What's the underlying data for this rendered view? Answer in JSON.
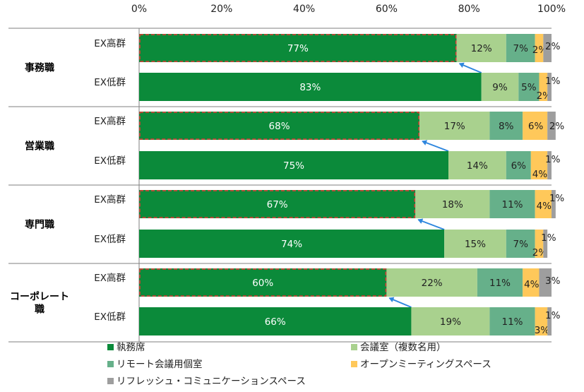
{
  "chart_data": {
    "type": "bar",
    "orientation": "horizontal",
    "stacked": true,
    "percent": true,
    "xlim": [
      0,
      100
    ],
    "xticks": [
      "0%",
      "20%",
      "40%",
      "60%",
      "80%",
      "100%"
    ],
    "series": [
      {
        "name": "執務席",
        "color": "#0b8a3a"
      },
      {
        "name": "会議室（複数名用）",
        "color": "#a9d18e"
      },
      {
        "name": "リモート会議用個室",
        "color": "#66b08a"
      },
      {
        "name": "オープンミーティングスペース",
        "color": "#ffc85a"
      },
      {
        "name": "リフレッシュ・コミュニケーションスペース",
        "color": "#9e9e9e"
      }
    ],
    "groups": [
      {
        "label": [
          "事務職"
        ],
        "rows": [
          {
            "label": "EX高群",
            "values": [
              77,
              12,
              7,
              2,
              2
            ],
            "labels": [
              "77%",
              "12%",
              "7%",
              "2%",
              "2%"
            ],
            "highlight": true
          },
          {
            "label": "EX低群",
            "values": [
              83,
              9,
              5,
              2,
              1
            ],
            "labels": [
              "83%",
              "9%",
              "5%",
              "2%",
              "1%"
            ]
          }
        ]
      },
      {
        "label": [
          "営業職"
        ],
        "rows": [
          {
            "label": "EX高群",
            "values": [
              68,
              17,
              8,
              6,
              2
            ],
            "labels": [
              "68%",
              "17%",
              "8%",
              "6%",
              "2%"
            ],
            "highlight": true
          },
          {
            "label": "EX低群",
            "values": [
              75,
              14,
              6,
              4,
              1
            ],
            "labels": [
              "75%",
              "14%",
              "6%",
              "4%",
              "1%"
            ]
          }
        ]
      },
      {
        "label": [
          "専門職"
        ],
        "rows": [
          {
            "label": "EX高群",
            "values": [
              67,
              18,
              11,
              4,
              1
            ],
            "labels": [
              "67%",
              "18%",
              "11%",
              "4%",
              "1%"
            ],
            "highlight": true
          },
          {
            "label": "EX低群",
            "values": [
              74,
              15,
              7,
              2,
              1
            ],
            "labels": [
              "74%",
              "15%",
              "7%",
              "2%",
              "1%"
            ]
          }
        ]
      },
      {
        "label": [
          "コーポレート",
          "職"
        ],
        "rows": [
          {
            "label": "EX高群",
            "values": [
              60,
              22,
              11,
              4,
              3
            ],
            "labels": [
              "60%",
              "22%",
              "11%",
              "4%",
              "3%"
            ],
            "highlight": true
          },
          {
            "label": "EX低群",
            "values": [
              66,
              19,
              11,
              3,
              1
            ],
            "labels": [
              "66%",
              "19%",
              "11%",
              "3%",
              "1%"
            ]
          }
        ]
      }
    ],
    "legend": {
      "position": "bottom"
    },
    "grid": false
  }
}
